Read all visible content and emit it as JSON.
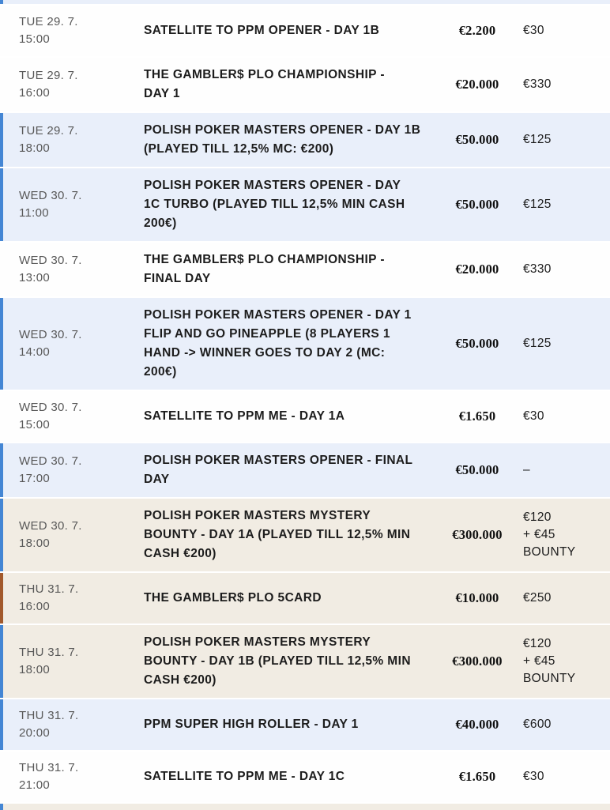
{
  "colors": {
    "accent_blue_stripe": "#4486d4",
    "accent_brown_stripe": "#a2592c",
    "row_light_blue_bg": "#e9effa",
    "row_beige_bg": "#f1ece3",
    "row_white_bg": "#fefefe",
    "date_text": "#585858",
    "title_text": "#1c1c1c"
  },
  "schedule": {
    "top_partial_row": {
      "bg": "blue",
      "stripe": "blue"
    },
    "bottom_partial_row": {
      "bg": "beige",
      "stripe": "blue"
    },
    "rows": [
      {
        "date": "TUE 29. 7.",
        "time": "15:00",
        "title": "SATELLITE TO PPM OPENER - DAY 1B",
        "guarantee": "€2.200",
        "buyin": "€30",
        "bg": "white",
        "stripe": "none"
      },
      {
        "date": "TUE 29. 7.",
        "time": "16:00",
        "title": "THE GAMBLER$ PLO CHAMPIONSHIP -\nDAY 1",
        "guarantee": "€20.000",
        "buyin": "€330",
        "bg": "white",
        "stripe": "none"
      },
      {
        "date": "TUE 29. 7.",
        "time": "18:00",
        "title": "POLISH POKER MASTERS OPENER - DAY 1B\n(PLAYED TILL 12,5% MC: €200)",
        "guarantee": "€50.000",
        "buyin": "€125",
        "bg": "blue",
        "stripe": "blue"
      },
      {
        "date": "WED 30. 7.",
        "time": "11:00",
        "title": "POLISH POKER MASTERS OPENER - DAY\n1C TURBO (PLAYED TILL 12,5% MIN CASH\n200€)",
        "guarantee": "€50.000",
        "buyin": "€125",
        "bg": "blue",
        "stripe": "blue"
      },
      {
        "date": "WED 30. 7.",
        "time": "13:00",
        "title": "THE GAMBLER$ PLO CHAMPIONSHIP -\nFINAL DAY",
        "guarantee": "€20.000",
        "buyin": "€330",
        "bg": "white",
        "stripe": "none"
      },
      {
        "date": "WED 30. 7.",
        "time": "14:00",
        "title": "POLISH POKER MASTERS OPENER - DAY 1\nFLIP AND GO PINEAPPLE (8 PLAYERS 1\nHAND -> WINNER GOES TO DAY 2 (MC:\n200€)",
        "guarantee": "€50.000",
        "buyin": "€125",
        "bg": "blue",
        "stripe": "blue"
      },
      {
        "date": "WED 30. 7.",
        "time": "15:00",
        "title": "SATELLITE TO PPM ME - DAY 1A",
        "guarantee": "€1.650",
        "buyin": "€30",
        "bg": "white",
        "stripe": "none"
      },
      {
        "date": "WED 30. 7.",
        "time": "17:00",
        "title": "POLISH POKER MASTERS OPENER - FINAL\nDAY",
        "guarantee": "€50.000",
        "buyin": "–",
        "bg": "blue",
        "stripe": "blue"
      },
      {
        "date": "WED 30. 7.",
        "time": "18:00",
        "title": "POLISH POKER MASTERS MYSTERY\nBOUNTY - DAY 1A (PLAYED TILL 12,5% MIN\nCASH €200)",
        "guarantee": "€300.000",
        "buyin": "€120\n+ €45\nBOUNTY",
        "bg": "beige",
        "stripe": "blue"
      },
      {
        "date": "THU 31. 7.",
        "time": "16:00",
        "title": "THE GAMBLER$ PLO 5CARD",
        "guarantee": "€10.000",
        "buyin": "€250",
        "bg": "beige",
        "stripe": "brown"
      },
      {
        "date": "THU 31. 7.",
        "time": "18:00",
        "title": "POLISH POKER MASTERS MYSTERY\nBOUNTY - DAY 1B (PLAYED TILL 12,5% MIN\nCASH €200)",
        "guarantee": "€300.000",
        "buyin": "€120\n+ €45\nBOUNTY",
        "bg": "beige",
        "stripe": "blue"
      },
      {
        "date": "THU 31. 7.",
        "time": "20:00",
        "title": "PPM SUPER HIGH ROLLER - DAY 1",
        "guarantee": "€40.000",
        "buyin": "€600",
        "bg": "blue",
        "stripe": "blue"
      },
      {
        "date": "THU 31. 7.",
        "time": "21:00",
        "title": "SATELLITE TO PPM ME - DAY 1C",
        "guarantee": "€1.650",
        "buyin": "€30",
        "bg": "white",
        "stripe": "none"
      }
    ]
  }
}
